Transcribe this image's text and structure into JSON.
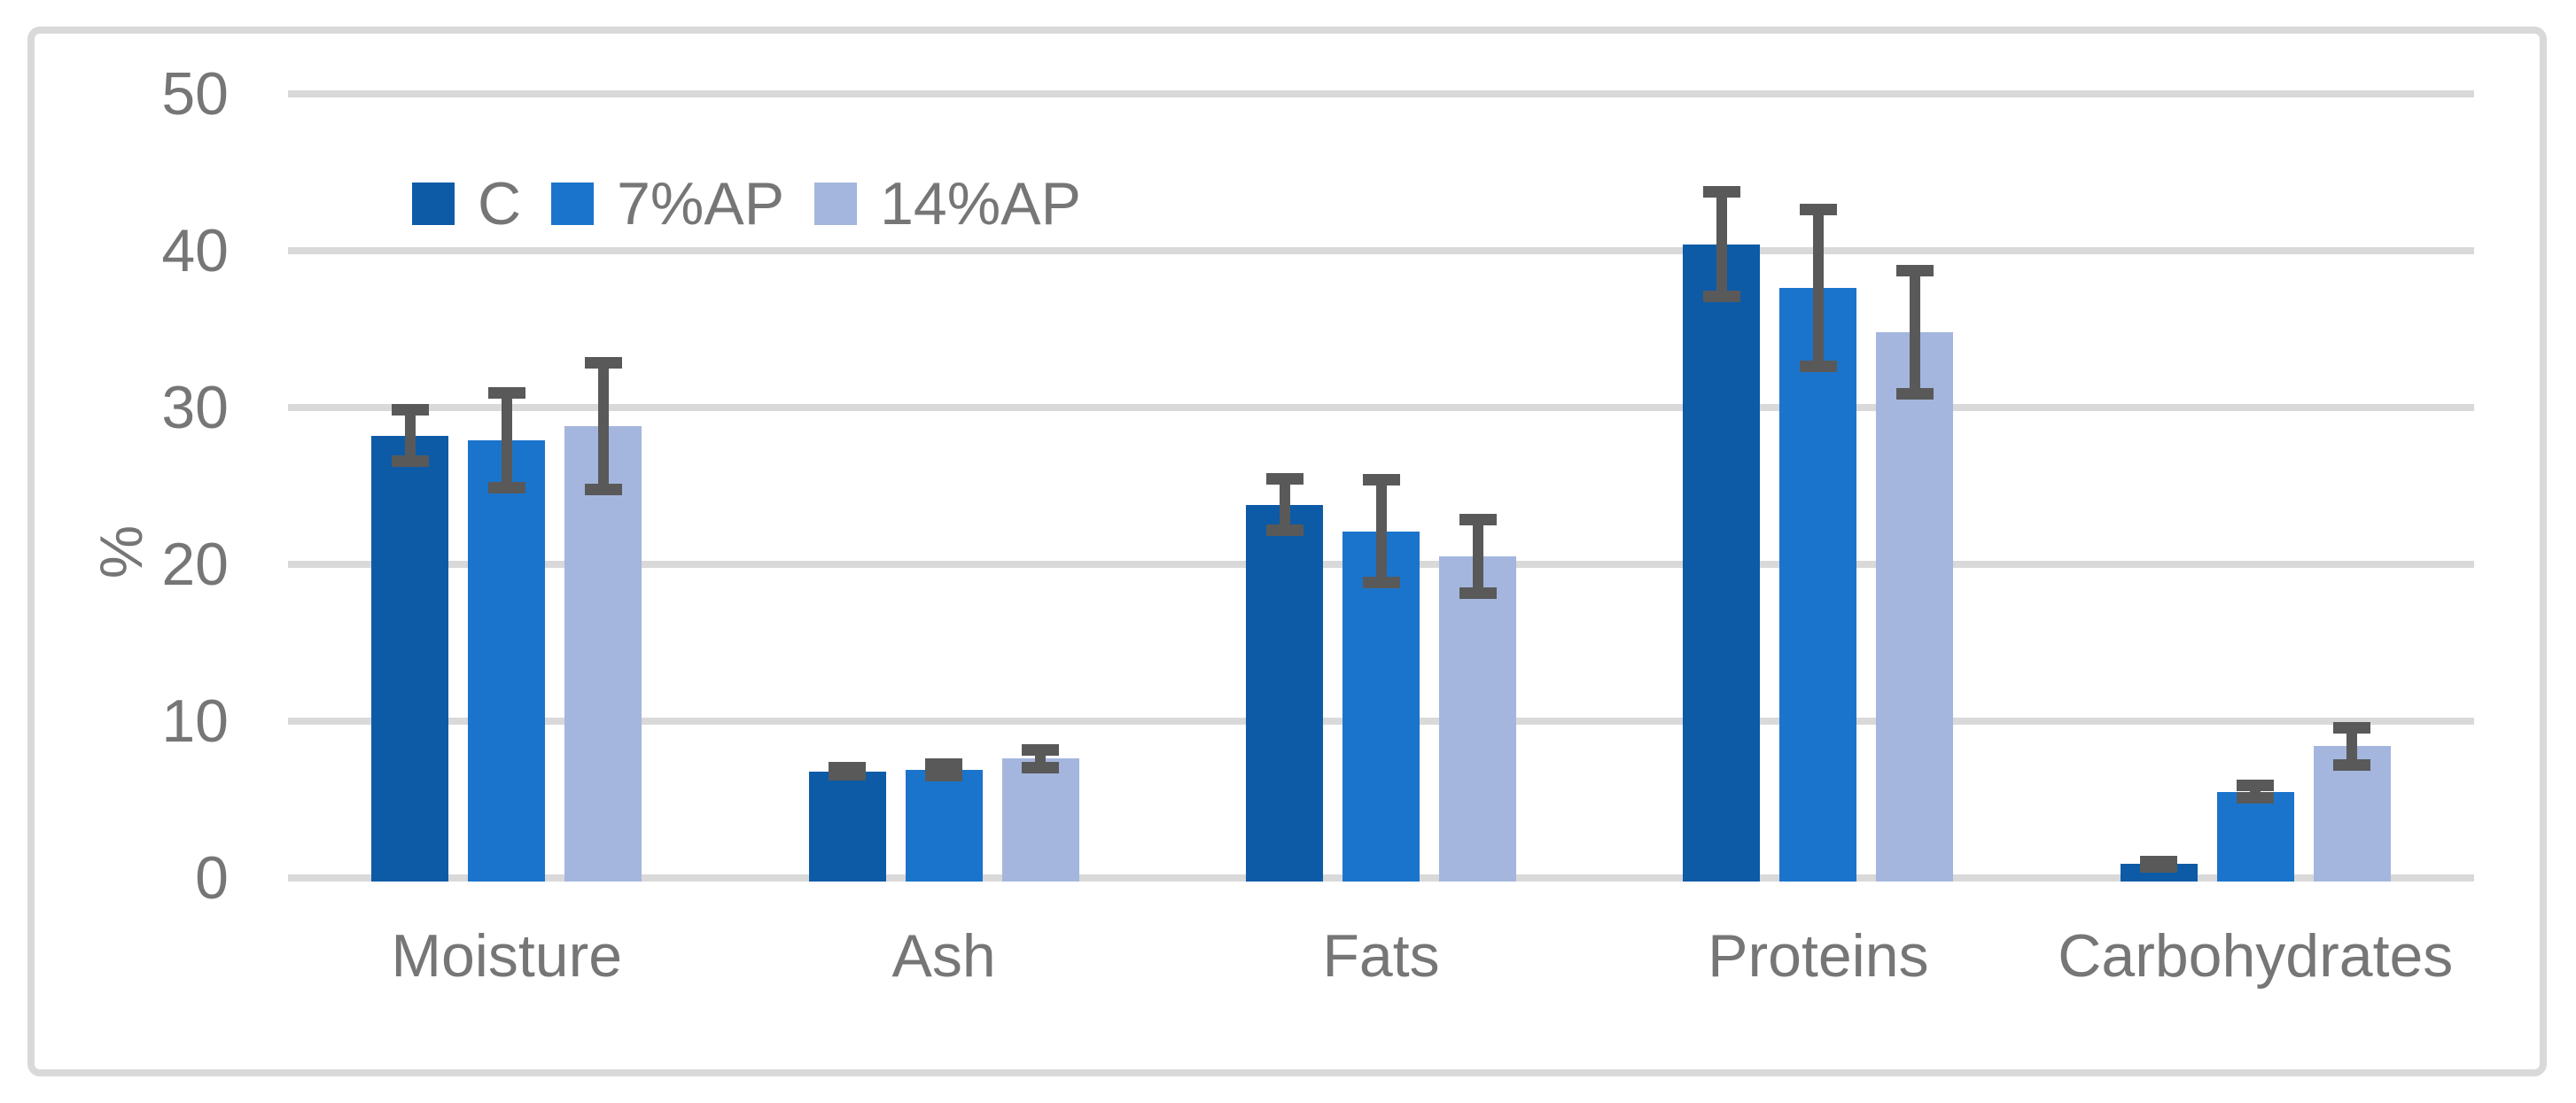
{
  "figure": {
    "background_color": "#FFFFFF",
    "frame_border_color": "#D9D9D9"
  },
  "chart_data": {
    "type": "bar",
    "title": "",
    "xlabel": "",
    "ylabel": "%",
    "ylim": [
      0,
      50
    ],
    "yticks": [
      0,
      10,
      20,
      30,
      40,
      50
    ],
    "grid": "horizontal",
    "gridline_color": "#D9D9D9",
    "text_color": "#767676",
    "error_bar_color": "#595959",
    "legend_position": "top-left-inside",
    "categories": [
      "Moisture",
      "Ash",
      "Fats",
      "Proteins",
      "Carbohydrates"
    ],
    "series": [
      {
        "name": "C",
        "color": "#0D5BA6",
        "values": [
          28.2,
          6.8,
          23.8,
          40.4,
          0.9
        ],
        "errors": [
          2.0,
          0.6,
          2.0,
          3.7,
          0.2
        ]
      },
      {
        "name": "7%AP",
        "color": "#1B74CB",
        "values": [
          27.9,
          6.9,
          22.1,
          37.6,
          5.5
        ],
        "errors": [
          3.4,
          0.75,
          3.65,
          5.35,
          0.75
        ]
      },
      {
        "name": "14%AP",
        "color": "#A4B6DD",
        "values": [
          28.8,
          7.6,
          20.5,
          34.8,
          8.4
        ],
        "errors": [
          4.4,
          0.95,
          2.7,
          4.3,
          1.55
        ]
      }
    ]
  }
}
